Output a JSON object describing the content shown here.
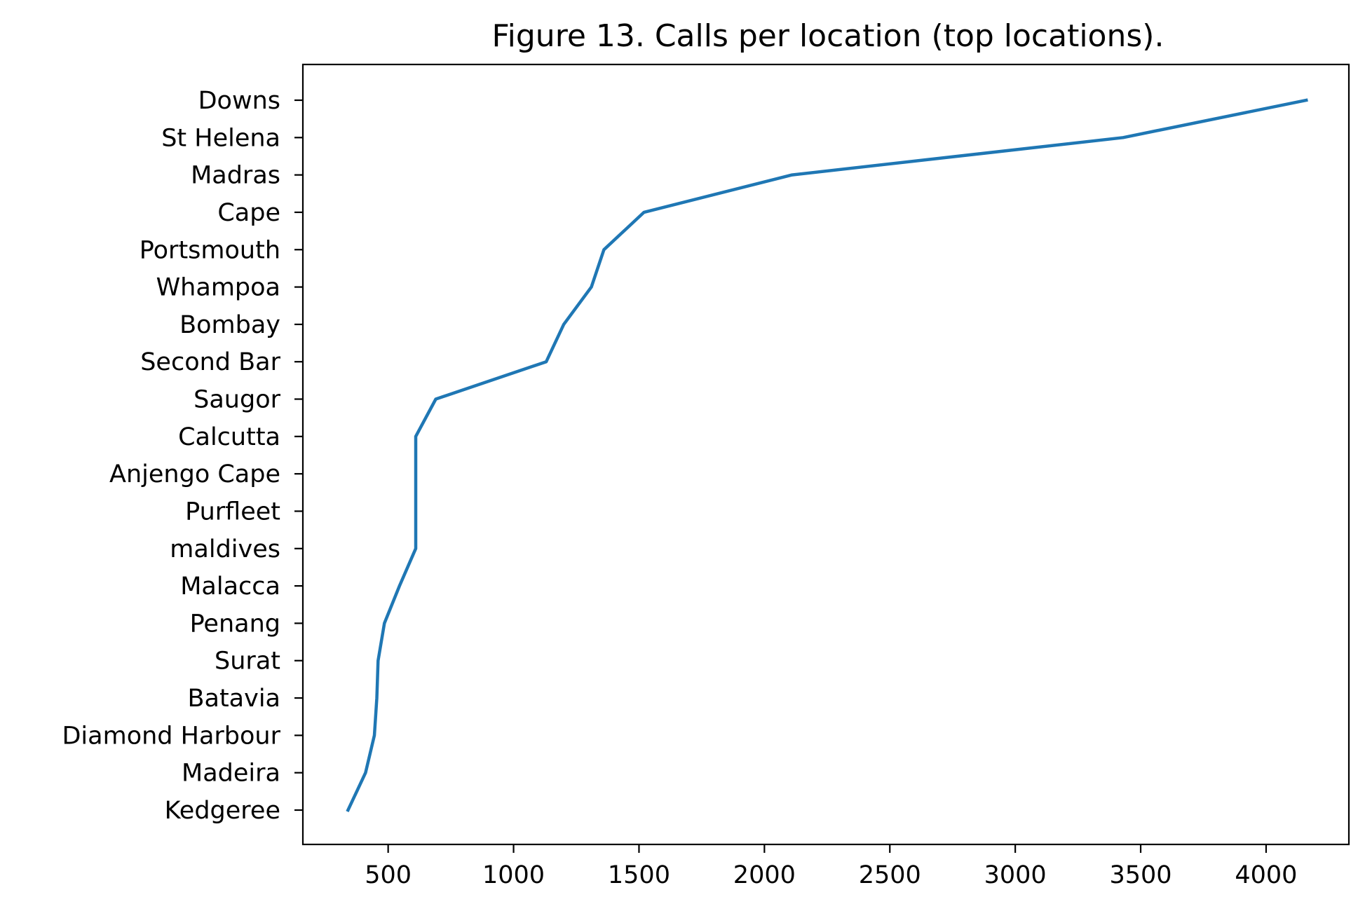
{
  "chart_data": {
    "type": "line",
    "title": "Figure 13. Calls per location (top locations).",
    "xlabel": "",
    "ylabel": "",
    "xlim": [
      160,
      4330
    ],
    "xticks": [
      500,
      1000,
      1500,
      2000,
      2500,
      3000,
      3500,
      4000
    ],
    "grid": false,
    "categories": [
      "Kedgeree",
      "Madeira",
      "Diamond Harbour",
      "Batavia",
      "Surat",
      "Penang",
      "Malacca",
      "maldives",
      "Purfleet",
      "Anjengo Cape",
      "Calcutta",
      "Saugor",
      "Second Bar",
      "Bombay",
      "Whampoa",
      "Portsmouth",
      "Cape",
      "Madras",
      "St Helena",
      "Downs"
    ],
    "series": [
      {
        "color": "#1f77b4",
        "values": [
          340,
          410,
          445,
          455,
          460,
          485,
          545,
          610,
          610,
          610,
          610,
          690,
          1130,
          1200,
          1310,
          1360,
          1520,
          2110,
          3430,
          4160
        ]
      }
    ]
  }
}
